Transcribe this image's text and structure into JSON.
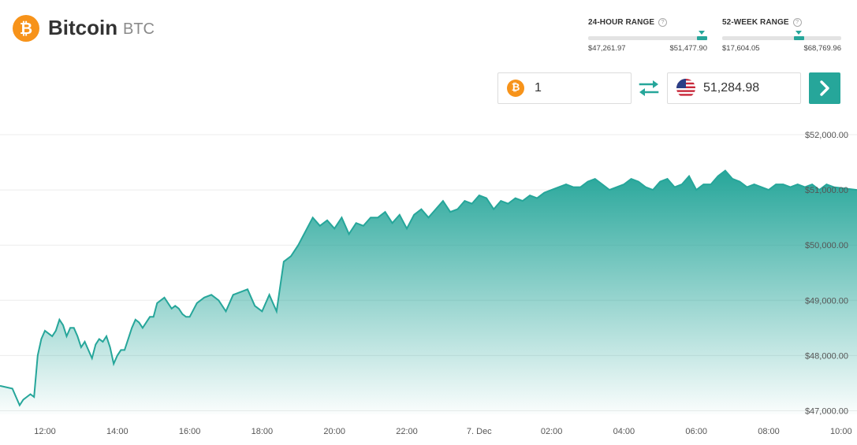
{
  "header": {
    "coin_name": "Bitcoin",
    "coin_symbol": "BTC",
    "logo_glyph": "₿",
    "logo_icon": "bitcoin-icon"
  },
  "ranges": {
    "day": {
      "label": "24-HOUR RANGE",
      "low": "$47,261.97",
      "high": "$51,477.90",
      "position": 0.955
    },
    "year": {
      "label": "52-WEEK RANGE",
      "low": "$17,604.05",
      "high": "$68,769.96",
      "position": 0.645
    },
    "help_glyph": "?"
  },
  "converter": {
    "crypto_amount": "1",
    "fiat_amount": "51,284.98",
    "crypto_icon": "bitcoin-icon",
    "fiat_icon": "us-flag-icon",
    "swap_icon": "swap-arrows-icon",
    "go_icon": "chevron-right-icon"
  },
  "colors": {
    "accent": "#26a69a",
    "bitcoin": "#f7931a"
  },
  "chart_data": {
    "type": "area",
    "title": "",
    "xlabel": "",
    "ylabel": "",
    "x_ticks": [
      "12:00",
      "14:00",
      "16:00",
      "18:00",
      "20:00",
      "22:00",
      "7. Dec",
      "02:00",
      "04:00",
      "06:00",
      "08:00",
      "10:00"
    ],
    "y_ticks": [
      "$47,000.00",
      "$48,000.00",
      "$49,000.00",
      "$50,000.00",
      "$51,000.00",
      "$52,000.00"
    ],
    "ylim": [
      46850,
      52200
    ],
    "x_range_hours": [
      11.0,
      21.8
    ],
    "grid": "horizontal",
    "series": [
      {
        "x": [
          11.0,
          11.1,
          11.2,
          11.3,
          11.4,
          11.5,
          11.6,
          11.7,
          11.8,
          11.9,
          12.0,
          12.1,
          12.2,
          12.3,
          12.4,
          12.5,
          12.6,
          12.7,
          12.8,
          12.9,
          13.0,
          13.1,
          13.2,
          13.3,
          13.4,
          13.5,
          13.6,
          13.7,
          13.8,
          13.9,
          14.0,
          14.1,
          14.2,
          14.3,
          14.4,
          14.5,
          14.6,
          14.7,
          14.8,
          14.9,
          15.0,
          15.1,
          15.2,
          15.3,
          15.4,
          15.5,
          15.6,
          15.7,
          15.8,
          15.9,
          16.0,
          16.2,
          16.4,
          16.6,
          16.8,
          17.0,
          17.2,
          17.4,
          17.6,
          17.8,
          18.0,
          18.2,
          18.4,
          18.6,
          18.8,
          19.0,
          19.2,
          19.4,
          19.6,
          19.8,
          20.0,
          20.2,
          20.4,
          20.6,
          20.8,
          21.0,
          21.2,
          21.4,
          21.6,
          21.8,
          22.0,
          22.2,
          22.4,
          22.6,
          22.8,
          23.0,
          23.2,
          23.4,
          23.6,
          23.8,
          24.0,
          24.2,
          24.4,
          24.6,
          24.8,
          25.0,
          25.2,
          25.4,
          25.6,
          25.8,
          26.0,
          26.2,
          26.4,
          26.6,
          26.8,
          27.0,
          27.2,
          27.4,
          27.6,
          27.8,
          28.0,
          28.2,
          28.4,
          28.6,
          28.8,
          29.0,
          29.2,
          29.4,
          29.6,
          29.8,
          30.0,
          30.2,
          30.4,
          30.6,
          30.8,
          31.0,
          31.2,
          31.4,
          31.6,
          31.8,
          32.0,
          32.2,
          32.4,
          32.6,
          32.8,
          33.0,
          33.2,
          33.4,
          33.6,
          33.8,
          34.0
        ],
        "y": [
          47450,
          47400,
          47250,
          47100,
          47200,
          47250,
          47300,
          47250,
          48000,
          48300,
          48450,
          48400,
          48350,
          48450,
          48650,
          48550,
          48350,
          48500,
          48500,
          48350,
          48150,
          48250,
          48100,
          47950,
          48200,
          48300,
          48250,
          48350,
          48150,
          47850,
          48000,
          48100,
          48100,
          48300,
          48500,
          48650,
          48600,
          48500,
          48600,
          48700,
          48700,
          48950,
          49000,
          49050,
          48950,
          48850,
          48900,
          48850,
          48750,
          48700,
          48700,
          48950,
          49050,
          49100,
          49000,
          48800,
          49100,
          49150,
          49200,
          48900,
          48800,
          49100,
          48800,
          49700,
          49800,
          50000,
          50250,
          50500,
          50350,
          50450,
          50300,
          50500,
          50200,
          50400,
          50350,
          50500,
          50500,
          50600,
          50400,
          50550,
          50300,
          50550,
          50650,
          50500,
          50650,
          50800,
          50600,
          50650,
          50800,
          50750,
          50900,
          50850,
          50650,
          50800,
          50750,
          50850,
          50800,
          50900,
          50850,
          50950,
          51000,
          51050,
          51100,
          51050,
          51050,
          51150,
          51200,
          51100,
          51000,
          51050,
          51100,
          51200,
          51150,
          51050,
          51000,
          51150,
          51200,
          51050,
          51100,
          51250,
          51000,
          51100,
          51100,
          51250,
          51350,
          51200,
          51150,
          51050,
          51100,
          51050,
          51000,
          51100,
          51100,
          51050,
          51100,
          51050,
          51100,
          51000,
          51100,
          51050,
          51000
        ]
      }
    ]
  }
}
